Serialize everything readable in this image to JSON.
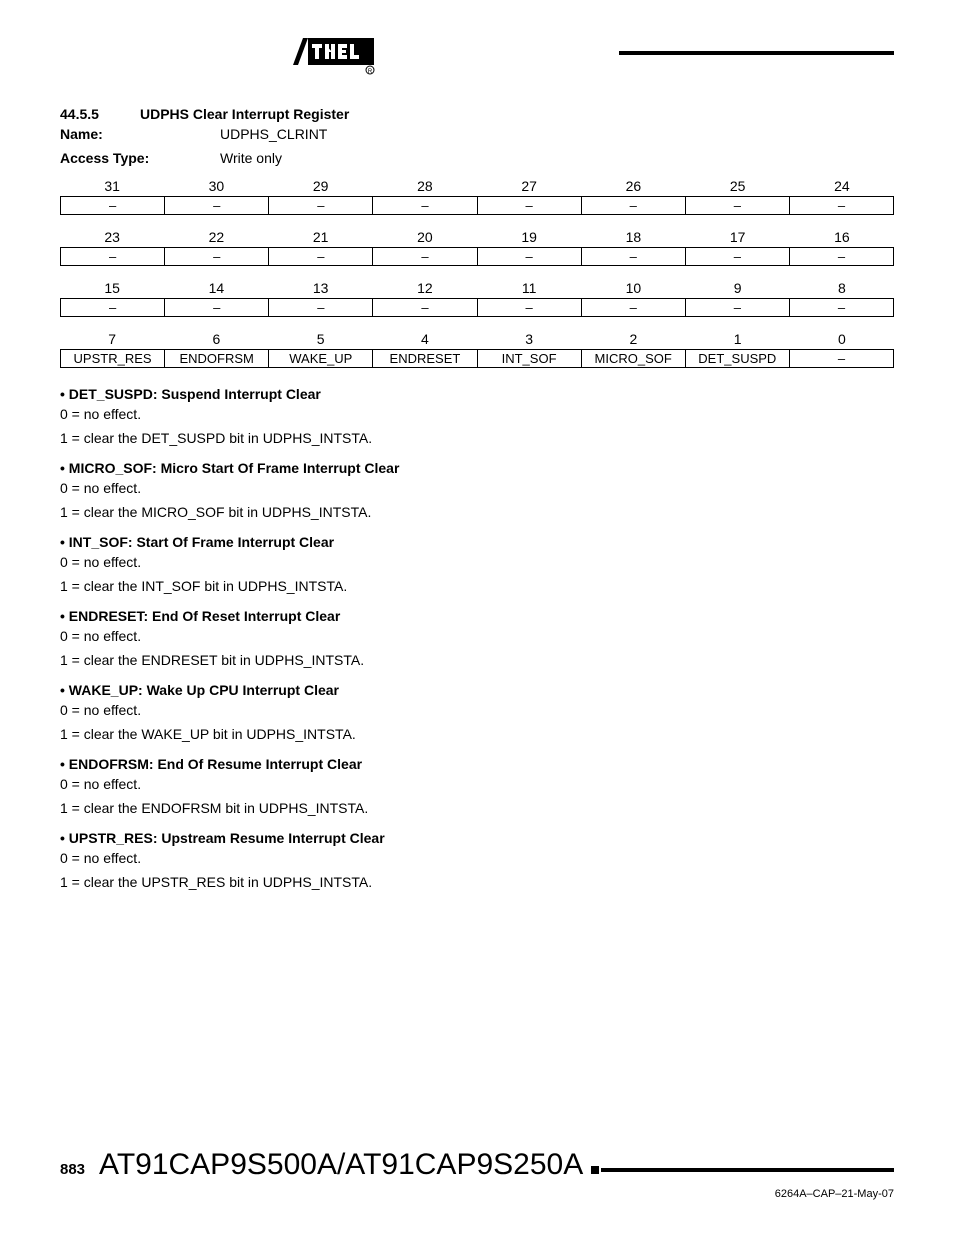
{
  "header": {
    "logo_text": "ATMEL"
  },
  "section": {
    "number": "44.5.5",
    "title": "UDPHS Clear Interrupt Register"
  },
  "name_label": "Name:",
  "name_value": "UDPHS_CLRINT",
  "access_label": "Access Type:",
  "access_value": "Write only",
  "register_rows": [
    {
      "bits": [
        "31",
        "30",
        "29",
        "28",
        "27",
        "26",
        "25",
        "24"
      ],
      "cells": [
        "–",
        "–",
        "–",
        "–",
        "–",
        "–",
        "–",
        "–"
      ]
    },
    {
      "bits": [
        "23",
        "22",
        "21",
        "20",
        "19",
        "18",
        "17",
        "16"
      ],
      "cells": [
        "–",
        "–",
        "–",
        "–",
        "–",
        "–",
        "–",
        "–"
      ]
    },
    {
      "bits": [
        "15",
        "14",
        "13",
        "12",
        "11",
        "10",
        "9",
        "8"
      ],
      "cells": [
        "–",
        "–",
        "–",
        "–",
        "–",
        "–",
        "–",
        "–"
      ]
    },
    {
      "bits": [
        "7",
        "6",
        "5",
        "4",
        "3",
        "2",
        "1",
        "0"
      ],
      "cells": [
        "UPSTR_RES",
        "ENDOFRSM",
        "WAKE_UP",
        "ENDRESET",
        "INT_SOF",
        "MICRO_SOF",
        "DET_SUSPD",
        "–"
      ]
    }
  ],
  "descriptions": [
    {
      "title": "DET_SUSPD: Suspend Interrupt Clear",
      "lines": [
        "0 = no effect.",
        "1 = clear the DET_SUSPD bit in UDPHS_INTSTA."
      ]
    },
    {
      "title": "MICRO_SOF: Micro Start Of Frame Interrupt Clear",
      "lines": [
        "0 = no effect.",
        "1 = clear the MICRO_SOF bit in UDPHS_INTSTA."
      ]
    },
    {
      "title": "INT_SOF: Start Of Frame Interrupt Clear",
      "lines": [
        "0 = no effect.",
        "1 = clear the INT_SOF bit in UDPHS_INTSTA."
      ]
    },
    {
      "title": "ENDRESET: End Of Reset Interrupt Clear",
      "lines": [
        "0 = no effect.",
        "1 = clear the ENDRESET bit in UDPHS_INTSTA."
      ]
    },
    {
      "title": "WAKE_UP: Wake Up CPU Interrupt Clear",
      "lines": [
        "0 = no effect.",
        "1 = clear the WAKE_UP bit in UDPHS_INTSTA."
      ]
    },
    {
      "title": "ENDOFRSM: End Of Resume Interrupt Clear",
      "lines": [
        "0 = no effect.",
        "1 = clear the ENDOFRSM bit in UDPHS_INTSTA."
      ]
    },
    {
      "title": "UPSTR_RES: Upstream Resume Interrupt Clear",
      "lines": [
        "0 = no effect.",
        "1 = clear the UPSTR_RES bit in UDPHS_INTSTA."
      ]
    }
  ],
  "footer": {
    "page": "883",
    "chip": "AT91CAP9S500A/AT91CAP9S250A",
    "docid": "6264A–CAP–21-May-07"
  }
}
